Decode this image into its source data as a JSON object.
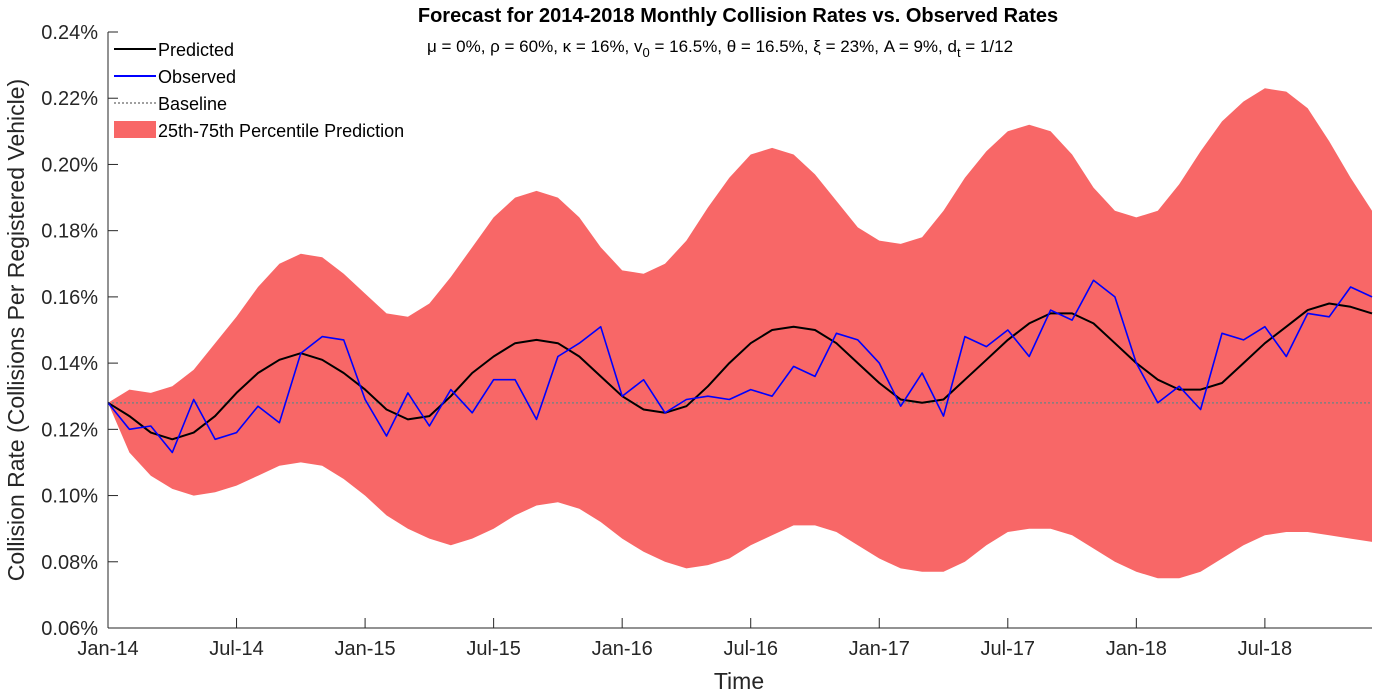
{
  "chart_data": {
    "type": "line",
    "title": "Forecast for 2014-2018 Monthly Collision Rates vs. Observed Rates",
    "subtitle_parts": {
      "pre": "μ = 0%, ρ = 60%, κ = 16%, v",
      "v_sub": "0",
      "mid": " = 16.5%, θ = 16.5%, ξ = 23%, A = 9%, d",
      "d_sub": "t",
      "post": " = 1/12"
    },
    "xlabel": "Time",
    "ylabel": "Collision Rate (Collisions Per Registered Vehicle)",
    "ylim": [
      0.06,
      0.24
    ],
    "xlim": [
      0,
      59
    ],
    "yticks": [
      0.06,
      0.08,
      0.1,
      0.12,
      0.14,
      0.16,
      0.18,
      0.2,
      0.22,
      0.24
    ],
    "ytick_labels": [
      "0.06%",
      "0.08%",
      "0.10%",
      "0.12%",
      "0.14%",
      "0.16%",
      "0.18%",
      "0.20%",
      "0.22%",
      "0.24%"
    ],
    "xtick_positions": [
      0,
      6,
      12,
      18,
      24,
      30,
      36,
      42,
      48,
      54
    ],
    "xtick_labels": [
      "Jan-14",
      "Jul-14",
      "Jan-15",
      "Jul-15",
      "Jan-16",
      "Jul-16",
      "Jan-17",
      "Jul-17",
      "Jan-18",
      "Jul-18"
    ],
    "legend": {
      "position": "top-left",
      "entries": [
        "Predicted",
        "Observed",
        "Baseline",
        "25th-75th Percentile Prediction"
      ]
    },
    "colors": {
      "predicted": "#000000",
      "observed": "#0000ff",
      "baseline": "#808080",
      "band": "#f86767"
    },
    "baseline": 0.128,
    "x": [
      0,
      1,
      2,
      3,
      4,
      5,
      6,
      7,
      8,
      9,
      10,
      11,
      12,
      13,
      14,
      15,
      16,
      17,
      18,
      19,
      20,
      21,
      22,
      23,
      24,
      25,
      26,
      27,
      28,
      29,
      30,
      31,
      32,
      33,
      34,
      35,
      36,
      37,
      38,
      39,
      40,
      41,
      42,
      43,
      44,
      45,
      46,
      47,
      48,
      49,
      50,
      51,
      52,
      53,
      54,
      55,
      56,
      57,
      58,
      59
    ],
    "series": [
      {
        "name": "Predicted",
        "values": [
          0.128,
          0.124,
          0.119,
          0.117,
          0.119,
          0.124,
          0.131,
          0.137,
          0.141,
          0.143,
          0.141,
          0.137,
          0.132,
          0.126,
          0.123,
          0.124,
          0.13,
          0.137,
          0.142,
          0.146,
          0.147,
          0.146,
          0.142,
          0.136,
          0.13,
          0.126,
          0.125,
          0.127,
          0.133,
          0.14,
          0.146,
          0.15,
          0.151,
          0.15,
          0.146,
          0.14,
          0.134,
          0.129,
          0.128,
          0.129,
          0.135,
          0.141,
          0.147,
          0.152,
          0.155,
          0.155,
          0.152,
          0.146,
          0.14,
          0.135,
          0.132,
          0.132,
          0.134,
          0.14,
          0.146,
          0.151,
          0.156,
          0.158,
          0.157,
          0.155
        ]
      },
      {
        "name": "Observed",
        "values": [
          0.128,
          0.12,
          0.121,
          0.113,
          0.129,
          0.117,
          0.119,
          0.127,
          0.122,
          0.143,
          0.148,
          0.147,
          0.129,
          0.118,
          0.131,
          0.121,
          0.132,
          0.125,
          0.135,
          0.135,
          0.123,
          0.142,
          0.146,
          0.151,
          0.13,
          0.135,
          0.125,
          0.129,
          0.13,
          0.129,
          0.132,
          0.13,
          0.139,
          0.136,
          0.149,
          0.147,
          0.14,
          0.127,
          0.137,
          0.124,
          0.148,
          0.145,
          0.15,
          0.142,
          0.156,
          0.153,
          0.165,
          0.16,
          0.14,
          0.128,
          0.133,
          0.126,
          0.149,
          0.147,
          0.151,
          0.142,
          0.155,
          0.154,
          0.163,
          0.16
        ]
      }
    ],
    "band": {
      "name": "25th-75th Percentile Prediction",
      "upper": [
        0.128,
        0.132,
        0.131,
        0.133,
        0.138,
        0.146,
        0.154,
        0.163,
        0.17,
        0.173,
        0.172,
        0.167,
        0.161,
        0.155,
        0.154,
        0.158,
        0.166,
        0.175,
        0.184,
        0.19,
        0.192,
        0.19,
        0.184,
        0.175,
        0.168,
        0.167,
        0.17,
        0.177,
        0.187,
        0.196,
        0.203,
        0.205,
        0.203,
        0.197,
        0.189,
        0.181,
        0.177,
        0.176,
        0.178,
        0.186,
        0.196,
        0.204,
        0.21,
        0.212,
        0.21,
        0.203,
        0.193,
        0.186,
        0.184,
        0.186,
        0.194,
        0.204,
        0.213,
        0.219,
        0.223,
        0.222,
        0.217,
        0.207,
        0.196,
        0.186
      ],
      "lower": [
        0.128,
        0.113,
        0.106,
        0.102,
        0.1,
        0.101,
        0.103,
        0.106,
        0.109,
        0.11,
        0.109,
        0.105,
        0.1,
        0.094,
        0.09,
        0.087,
        0.085,
        0.087,
        0.09,
        0.094,
        0.097,
        0.098,
        0.096,
        0.092,
        0.087,
        0.083,
        0.08,
        0.078,
        0.079,
        0.081,
        0.085,
        0.088,
        0.091,
        0.091,
        0.089,
        0.085,
        0.081,
        0.078,
        0.077,
        0.077,
        0.08,
        0.085,
        0.089,
        0.09,
        0.09,
        0.088,
        0.084,
        0.08,
        0.077,
        0.075,
        0.075,
        0.077,
        0.081,
        0.085,
        0.088,
        0.089,
        0.089,
        0.088,
        0.087,
        0.086
      ]
    }
  }
}
